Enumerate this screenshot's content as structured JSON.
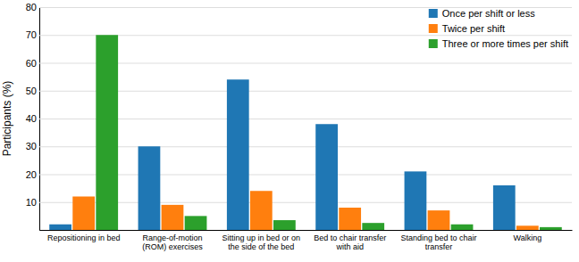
{
  "chart_data": {
    "type": "bar",
    "categories": [
      "Repositioning in bed",
      "Range-of-motion\n(ROM) exercises",
      "Sitting up in bed or on\nthe side of the bed",
      "Bed to chair transfer\nwith aid",
      "Standing bed to chair\ntransfer",
      "Walking"
    ],
    "series": [
      {
        "name": "Once per shift or less",
        "values": [
          2,
          30,
          54,
          38,
          21,
          16
        ]
      },
      {
        "name": "Twice per shift",
        "values": [
          12,
          9,
          14,
          8,
          7,
          1.5
        ]
      },
      {
        "name": "Three or more times per shift",
        "values": [
          70,
          5,
          3.5,
          2.5,
          2,
          1
        ]
      }
    ],
    "ylabel": "Participants (%)",
    "ylim": [
      0,
      80
    ],
    "yticks": [
      10,
      20,
      30,
      40,
      50,
      60,
      70,
      80
    ],
    "grid": true,
    "legend": "upper right"
  }
}
